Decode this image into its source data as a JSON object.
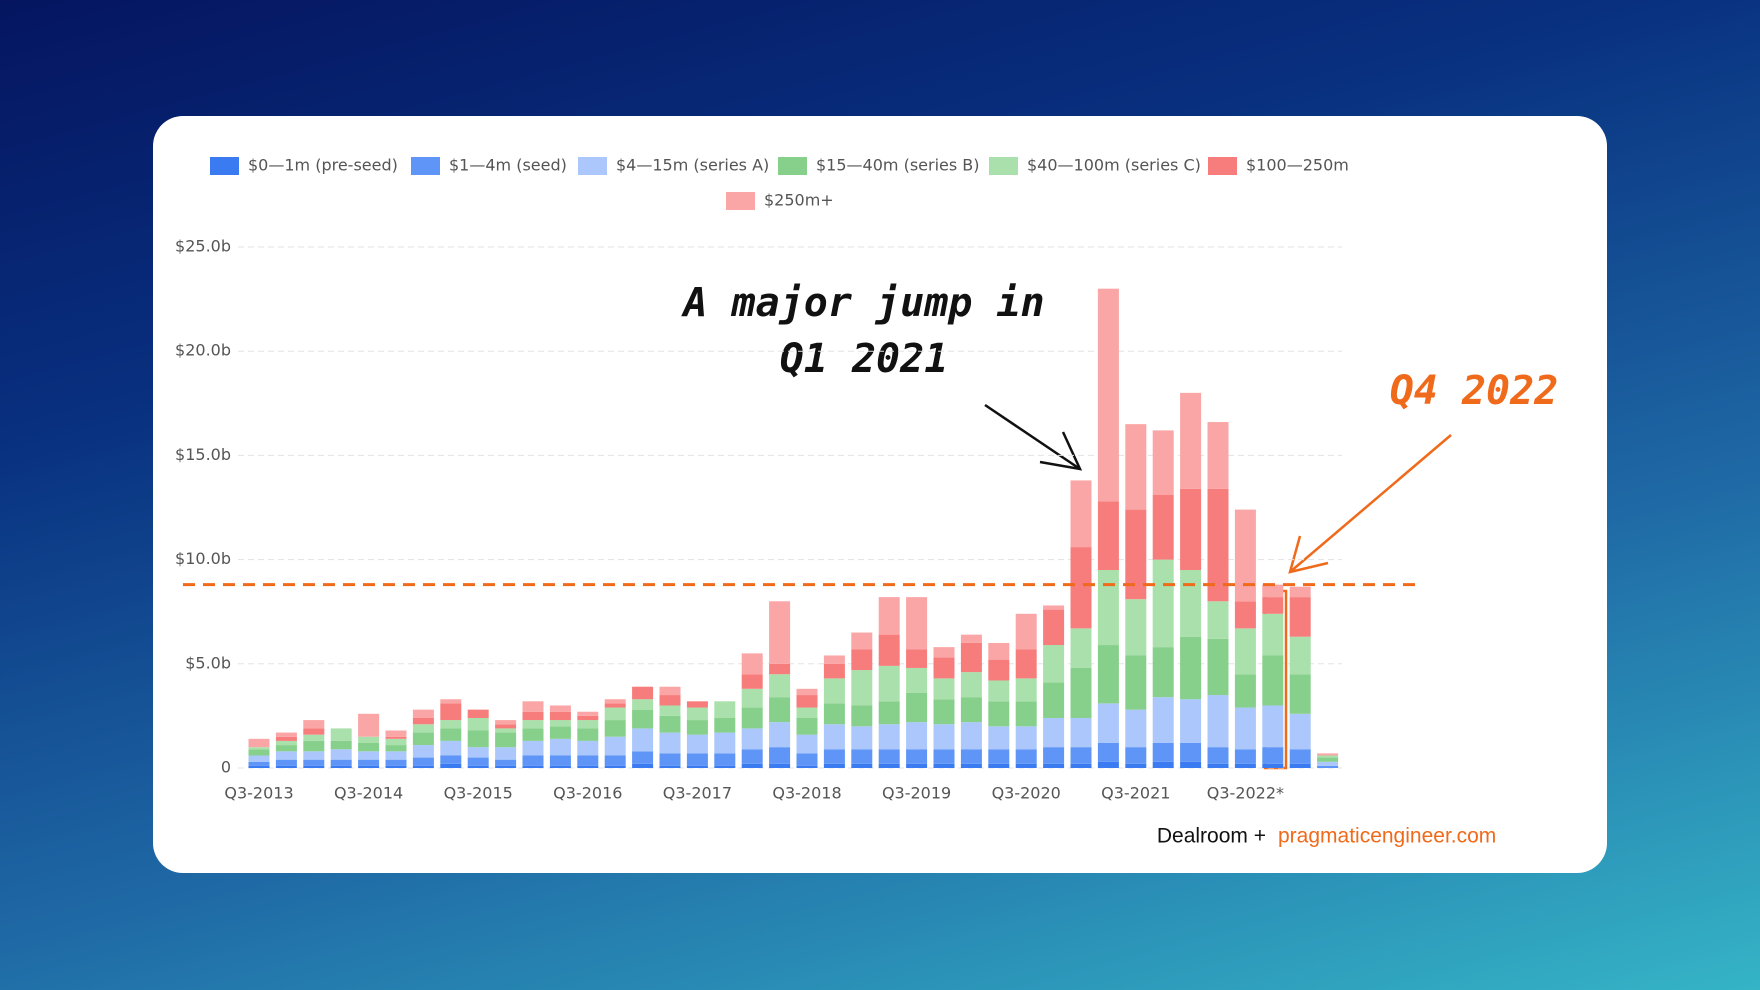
{
  "chart_data": {
    "type": "stacked_bar",
    "categories": [
      "Q3-2013",
      null,
      null,
      null,
      "Q3-2014",
      null,
      null,
      null,
      "Q3-2015",
      null,
      null,
      null,
      "Q3-2016",
      null,
      null,
      null,
      "Q3-2017",
      null,
      null,
      null,
      "Q3-2018",
      null,
      null,
      null,
      "Q3-2019",
      null,
      null,
      null,
      "Q3-2020",
      null,
      null,
      null,
      "Q3-2021",
      null,
      null,
      null,
      "Q3-2022*",
      null,
      null,
      null
    ],
    "series": [
      {
        "name": "$0—1m (pre-seed)",
        "color": "#3a7bf2",
        "values": [
          0.1,
          0.1,
          0.1,
          0.1,
          0.1,
          0.1,
          0.1,
          0.2,
          0.1,
          0.1,
          0.1,
          0.1,
          0.1,
          0.1,
          0.2,
          0.1,
          0.1,
          0.1,
          0.2,
          0.2,
          0.1,
          0.2,
          0.2,
          0.2,
          0.2,
          0.2,
          0.2,
          0.2,
          0.2,
          0.2,
          0.2,
          0.3,
          0.2,
          0.3,
          0.3,
          0.2,
          0.2,
          0.2,
          0.2,
          0
        ]
      },
      {
        "name": "$1—4m (seed)",
        "color": "#5e95f6",
        "values": [
          0.2,
          0.3,
          0.3,
          0.3,
          0.3,
          0.3,
          0.4,
          0.4,
          0.4,
          0.3,
          0.5,
          0.5,
          0.5,
          0.5,
          0.6,
          0.6,
          0.6,
          0.6,
          0.7,
          0.8,
          0.6,
          0.7,
          0.7,
          0.7,
          0.7,
          0.7,
          0.7,
          0.7,
          0.7,
          0.8,
          0.8,
          0.9,
          0.8,
          0.9,
          0.9,
          0.8,
          0.7,
          0.8,
          0.7,
          0.1
        ]
      },
      {
        "name": "$4—15m (series A)",
        "color": "#abc7fb",
        "values": [
          0.3,
          0.4,
          0.4,
          0.5,
          0.4,
          0.4,
          0.6,
          0.7,
          0.5,
          0.6,
          0.7,
          0.8,
          0.7,
          0.9,
          1.1,
          1.0,
          0.9,
          1.0,
          1.0,
          1.2,
          0.9,
          1.2,
          1.1,
          1.2,
          1.3,
          1.2,
          1.3,
          1.1,
          1.1,
          1.4,
          1.4,
          1.9,
          1.8,
          2.2,
          2.1,
          2.5,
          2.0,
          2.0,
          1.7,
          0.2
        ]
      },
      {
        "name": "$15—40m (series B)",
        "color": "#87d08b",
        "values": [
          0.3,
          0.3,
          0.5,
          0.4,
          0.4,
          0.3,
          0.6,
          0.6,
          0.8,
          0.7,
          0.6,
          0.6,
          0.6,
          0.8,
          0.9,
          0.8,
          0.7,
          0.7,
          1.0,
          1.2,
          0.8,
          1.0,
          1.0,
          1.1,
          1.4,
          1.2,
          1.2,
          1.2,
          1.2,
          1.7,
          2.4,
          2.8,
          2.6,
          2.4,
          3.0,
          2.7,
          1.6,
          2.4,
          1.9,
          0.2
        ]
      },
      {
        "name": "$40—100m (series C)",
        "color": "#a9e0ab",
        "values": [
          0.1,
          0.2,
          0.3,
          0.6,
          0.3,
          0.3,
          0.4,
          0.4,
          0.6,
          0.2,
          0.4,
          0.3,
          0.4,
          0.6,
          0.5,
          0.5,
          0.6,
          0.8,
          0.9,
          1.1,
          0.5,
          1.2,
          1.7,
          1.7,
          1.2,
          1.0,
          1.2,
          1.0,
          1.1,
          1.8,
          1.9,
          3.6,
          2.7,
          4.2,
          3.2,
          1.8,
          2.2,
          2.0,
          1.8,
          0.1
        ]
      },
      {
        "name": "$100—250m",
        "color": "#f77c7c",
        "values": [
          0,
          0.2,
          0.3,
          0,
          0,
          0.1,
          0.3,
          0.8,
          0.4,
          0.2,
          0.4,
          0.4,
          0.2,
          0.2,
          0.6,
          0.5,
          0.3,
          0,
          0.7,
          0.5,
          0.6,
          0.7,
          1.0,
          1.5,
          0.9,
          1.0,
          1.4,
          1.0,
          1.4,
          1.7,
          3.9,
          3.3,
          4.3,
          3.1,
          3.9,
          5.4,
          1.3,
          0.8,
          1.9,
          0
        ]
      },
      {
        "name": "$250m+",
        "color": "#fba6a6",
        "values": [
          0.4,
          0.2,
          0.4,
          0,
          1.1,
          0.3,
          0.4,
          0.2,
          0,
          0.2,
          0.5,
          0.3,
          0.2,
          0.2,
          0,
          0.4,
          0,
          0,
          1.0,
          3.0,
          0.3,
          0.4,
          0.8,
          1.8,
          2.5,
          0.5,
          0.4,
          0.8,
          1.7,
          0.2,
          3.2,
          10.2,
          4.1,
          3.1,
          4.6,
          3.2,
          4.4,
          0.6,
          0.5,
          0.1
        ]
      }
    ],
    "ylim": [
      0,
      25
    ],
    "yticks": [
      0,
      {
        "value": 5,
        "label": "$5.0b"
      },
      {
        "value": 10,
        "label": "$10.0b"
      },
      {
        "value": 15,
        "label": "$15.0b"
      },
      {
        "value": 20,
        "label": "$20.0b"
      },
      {
        "value": 25,
        "label": "$25.0b"
      }
    ],
    "grid": true,
    "legend": "top",
    "reference_line": {
      "value": 8.8,
      "color": "#ef6a1a"
    },
    "annotations": [
      "A major jump in",
      "Q1 2021",
      "Q4 2022"
    ],
    "source": [
      "Dealroom +",
      "pragmaticengineer.com"
    ]
  }
}
